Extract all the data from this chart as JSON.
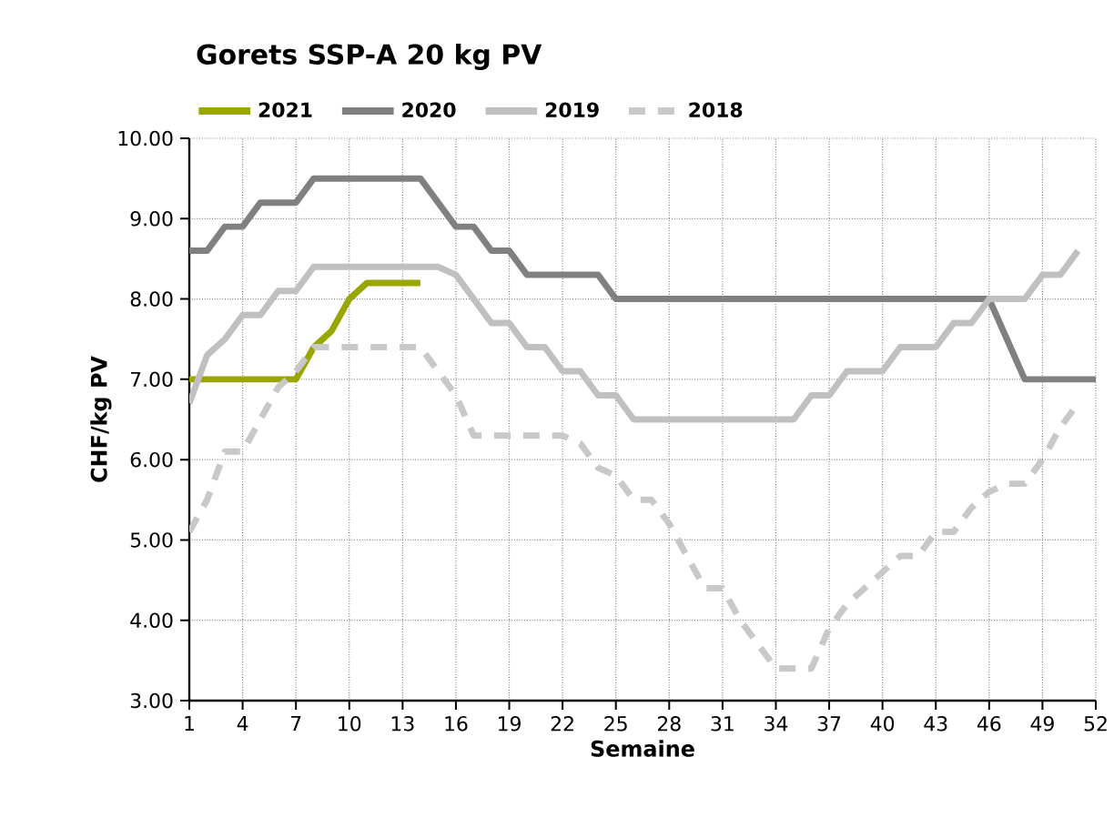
{
  "chart_data": {
    "type": "line",
    "title": "Gorets SSP-A 20 kg PV",
    "xlabel": "Semaine",
    "ylabel": "CHF/kg PV",
    "x": [
      1,
      2,
      3,
      4,
      5,
      6,
      7,
      8,
      9,
      10,
      11,
      12,
      13,
      14,
      15,
      16,
      17,
      18,
      19,
      20,
      21,
      22,
      23,
      24,
      25,
      26,
      27,
      28,
      29,
      30,
      31,
      32,
      33,
      34,
      35,
      36,
      37,
      38,
      39,
      40,
      41,
      42,
      43,
      44,
      45,
      46,
      47,
      48,
      49,
      50,
      51,
      52
    ],
    "series": [
      {
        "name": "2021",
        "color": "#9aa600",
        "line_style": "solid",
        "values": [
          7.0,
          7.0,
          7.0,
          7.0,
          7.0,
          7.0,
          7.0,
          7.4,
          7.6,
          8.0,
          8.2,
          8.2,
          8.2,
          8.2,
          null,
          null,
          null,
          null,
          null,
          null,
          null,
          null,
          null,
          null,
          null,
          null,
          null,
          null,
          null,
          null,
          null,
          null,
          null,
          null,
          null,
          null,
          null,
          null,
          null,
          null,
          null,
          null,
          null,
          null,
          null,
          null,
          null,
          null,
          null,
          null,
          null,
          null
        ]
      },
      {
        "name": "2020",
        "color": "#808080",
        "line_style": "solid",
        "values": [
          8.6,
          8.6,
          8.9,
          8.9,
          9.2,
          9.2,
          9.2,
          9.5,
          9.5,
          9.5,
          9.5,
          9.5,
          9.5,
          9.5,
          9.2,
          8.9,
          8.9,
          8.6,
          8.6,
          8.3,
          8.3,
          8.3,
          8.3,
          8.3,
          8.0,
          8.0,
          8.0,
          8.0,
          8.0,
          8.0,
          8.0,
          8.0,
          8.0,
          8.0,
          8.0,
          8.0,
          8.0,
          8.0,
          8.0,
          8.0,
          8.0,
          8.0,
          8.0,
          8.0,
          8.0,
          8.0,
          7.5,
          7.0,
          7.0,
          7.0,
          7.0,
          7.0
        ]
      },
      {
        "name": "2019",
        "color": "#c0c0c0",
        "line_style": "solid",
        "values": [
          6.7,
          7.3,
          7.5,
          7.8,
          7.8,
          8.1,
          8.1,
          8.4,
          8.4,
          8.4,
          8.4,
          8.4,
          8.4,
          8.4,
          8.4,
          8.3,
          8.0,
          7.7,
          7.7,
          7.4,
          7.4,
          7.1,
          7.1,
          6.8,
          6.8,
          6.5,
          6.5,
          6.5,
          6.5,
          6.5,
          6.5,
          6.5,
          6.5,
          6.5,
          6.5,
          6.8,
          6.8,
          7.1,
          7.1,
          7.1,
          7.4,
          7.4,
          7.4,
          7.7,
          7.7,
          8.0,
          8.0,
          8.0,
          8.3,
          8.3,
          8.6,
          null
        ]
      },
      {
        "name": "2018",
        "color": "#c8c8c8",
        "line_style": "dashed",
        "values": [
          5.1,
          5.5,
          6.1,
          6.1,
          6.5,
          6.9,
          7.1,
          7.4,
          7.4,
          7.4,
          7.4,
          7.4,
          7.4,
          7.4,
          7.1,
          6.8,
          6.3,
          6.3,
          6.3,
          6.3,
          6.3,
          6.3,
          6.2,
          5.9,
          5.8,
          5.5,
          5.5,
          5.2,
          4.8,
          4.4,
          4.4,
          4.0,
          3.7,
          3.4,
          3.4,
          3.4,
          3.9,
          4.2,
          4.4,
          4.6,
          4.8,
          4.8,
          5.1,
          5.1,
          5.4,
          5.6,
          5.7,
          5.7,
          6.0,
          6.4,
          6.7,
          null
        ]
      }
    ],
    "xlim": [
      1,
      52
    ],
    "xticks": [
      1,
      4,
      7,
      10,
      13,
      16,
      19,
      22,
      25,
      28,
      31,
      34,
      37,
      40,
      43,
      46,
      49,
      52
    ],
    "ylim": [
      3,
      10
    ],
    "yticks": [
      {
        "value": 3,
        "label": "3.00"
      },
      {
        "value": 4,
        "label": "4.00"
      },
      {
        "value": 5,
        "label": "5.00"
      },
      {
        "value": 6,
        "label": "6.00"
      },
      {
        "value": 7,
        "label": "7.00"
      },
      {
        "value": 8,
        "label": "8.00"
      },
      {
        "value": 9,
        "label": "9.00"
      },
      {
        "value": 10,
        "label": "10.00"
      }
    ],
    "grid": true,
    "legend": "top",
    "marker": "none"
  }
}
